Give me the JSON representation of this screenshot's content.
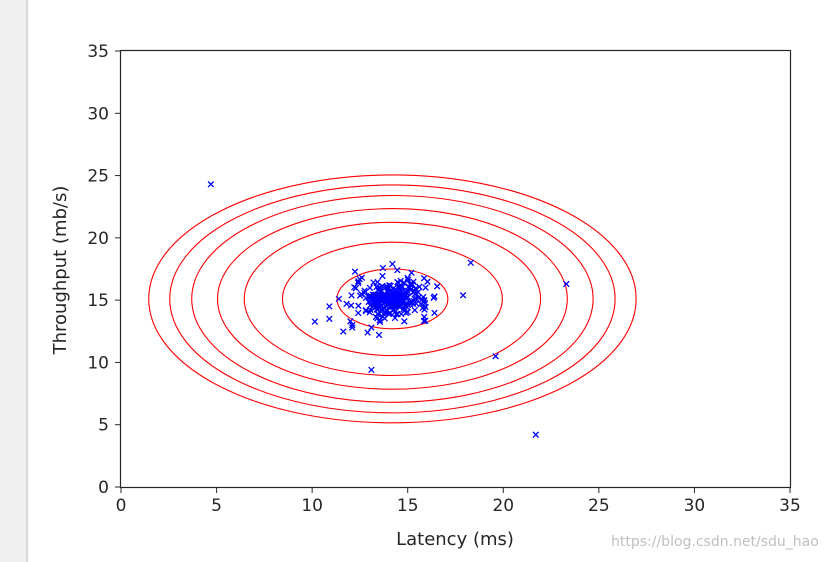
{
  "chart_data": {
    "type": "scatter",
    "xlabel": "Latency (ms)",
    "ylabel": "Throughput (mb/s)",
    "xlim": [
      0,
      35
    ],
    "ylim": [
      0,
      35
    ],
    "xticks": [
      0,
      5,
      10,
      15,
      20,
      25,
      30,
      35
    ],
    "yticks": [
      0,
      5,
      10,
      15,
      20,
      25,
      30,
      35
    ],
    "grid": false,
    "series": [
      {
        "marker": "x",
        "color": "#0000ff",
        "points": [
          [
            4.7,
            24.3
          ],
          [
            18.3,
            18.0
          ],
          [
            23.3,
            16.3
          ],
          [
            19.6,
            10.5
          ],
          [
            21.7,
            4.2
          ],
          [
            13.1,
            9.4
          ],
          [
            10.9,
            14.5
          ],
          [
            10.9,
            13.5
          ],
          [
            12.0,
            13.3
          ],
          [
            12.1,
            12.8
          ],
          [
            12.9,
            12.4
          ],
          [
            13.5,
            12.2
          ],
          [
            12.6,
            16.8
          ],
          [
            14.2,
            17.9
          ],
          [
            12.1,
            13.0
          ],
          [
            16.4,
            15.3
          ],
          [
            13.1,
            12.8
          ],
          [
            11.4,
            15.1
          ],
          [
            15.2,
            17.2
          ],
          [
            11.8,
            14.7
          ]
        ],
        "cluster": {
          "center": [
            14.2,
            15.1
          ],
          "spread": [
            0.95,
            0.75
          ],
          "count": 280
        }
      }
    ],
    "contours": {
      "color": "#ff0000",
      "center": [
        14.2,
        15.1
      ],
      "radii_x": [
        2.9,
        5.75,
        7.75,
        9.15,
        10.5,
        11.65,
        12.75
      ],
      "radii_y": [
        2.4,
        4.55,
        6.15,
        7.25,
        8.3,
        9.15,
        9.95
      ]
    }
  },
  "watermark": "https://blog.csdn.net/sdu_hao"
}
